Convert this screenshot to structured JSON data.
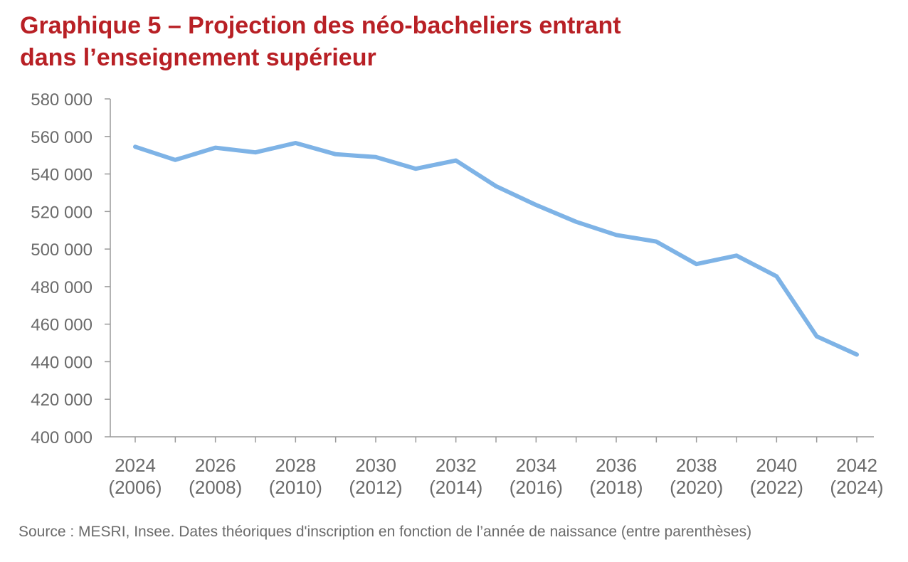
{
  "title": {
    "line1": "Graphique 5 – Projection des néo-bacheliers entrant",
    "line2": "dans l’enseignement supérieur"
  },
  "source": "Source : MESRI, Insee. Dates théoriques d'inscription en fonction de l’année de naissance (entre parenthèses)",
  "colors": {
    "title": "#b82025",
    "line": "#7eb3e6",
    "axis": "#9a9a9a",
    "text": "#6b6b6b"
  },
  "chart_data": {
    "type": "line",
    "title": "Graphique 5 – Projection des néo-bacheliers entrant dans l’enseignement supérieur",
    "xlabel": "",
    "ylabel": "",
    "ylim": [
      400000,
      580000
    ],
    "y_ticks": [
      400000,
      420000,
      440000,
      460000,
      480000,
      500000,
      520000,
      540000,
      560000,
      580000
    ],
    "y_tick_labels": [
      "400 000",
      "420 000",
      "440 000",
      "460 000",
      "480 000",
      "500 000",
      "520 000",
      "540 000",
      "560 000",
      "580 000"
    ],
    "x": [
      2024,
      2025,
      2026,
      2027,
      2028,
      2029,
      2030,
      2031,
      2032,
      2033,
      2034,
      2035,
      2036,
      2037,
      2038,
      2039,
      2040,
      2041,
      2042
    ],
    "x_tick_labels": [
      {
        "year": "2024",
        "birth": "(2006)"
      },
      {
        "year": "2026",
        "birth": "(2008)"
      },
      {
        "year": "2028",
        "birth": "(2010)"
      },
      {
        "year": "2030",
        "birth": "(2012)"
      },
      {
        "year": "2032",
        "birth": "(2014)"
      },
      {
        "year": "2034",
        "birth": "(2016)"
      },
      {
        "year": "2036",
        "birth": "(2018)"
      },
      {
        "year": "2038",
        "birth": "(2020)"
      },
      {
        "year": "2040",
        "birth": "(2022)"
      },
      {
        "year": "2042",
        "birth": "(2024)"
      }
    ],
    "series": [
      {
        "values": [
          554500,
          547500,
          554000,
          551500,
          556500,
          550500,
          549000,
          542800,
          547200,
          533500,
          523500,
          514500,
          507500,
          504000,
          492000,
          496500,
          485500,
          453500,
          443800
        ]
      }
    ],
    "grid": false,
    "legend": "none"
  }
}
